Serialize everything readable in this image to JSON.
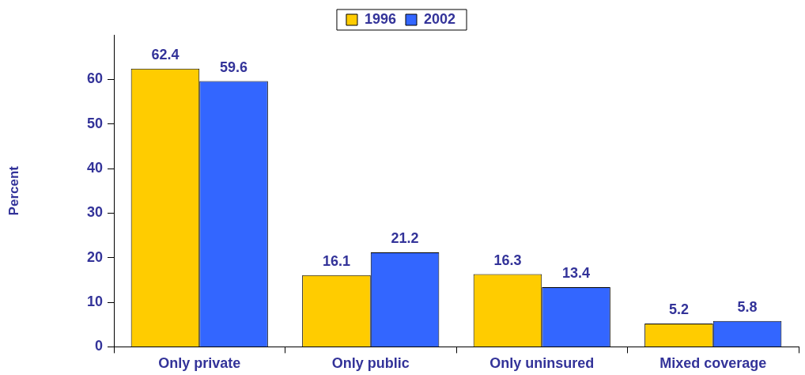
{
  "chart_data": {
    "type": "bar",
    "ylabel": "Percent",
    "categories": [
      "Only private",
      "Only public",
      "Only uninsured",
      "Mixed coverage"
    ],
    "series": [
      {
        "name": "1996",
        "color": "#ffcc00",
        "values": [
          62.4,
          16.1,
          16.3,
          5.2
        ]
      },
      {
        "name": "2002",
        "color": "#3366ff",
        "values": [
          59.6,
          21.2,
          13.4,
          5.8
        ]
      }
    ],
    "ylim": [
      0,
      70
    ],
    "yticks": [
      0,
      10,
      20,
      30,
      40,
      50,
      60
    ],
    "grid": false,
    "legend": "top",
    "data_labels": true
  }
}
